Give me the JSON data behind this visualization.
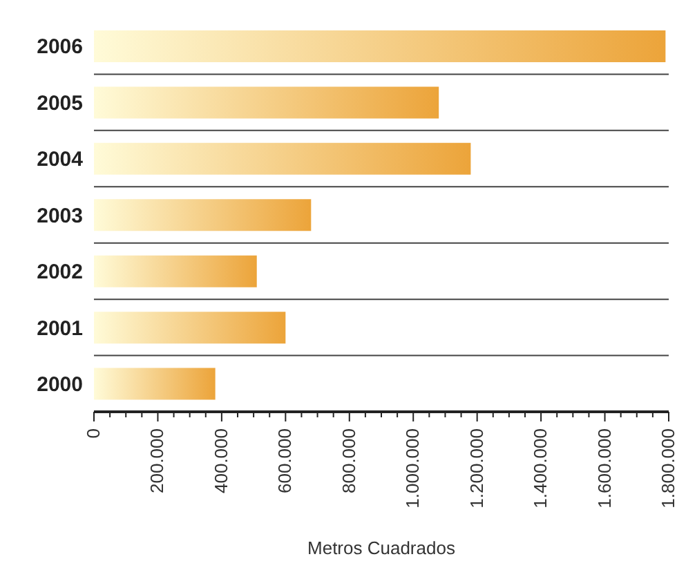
{
  "chart_data": {
    "type": "bar",
    "orientation": "horizontal",
    "xlabel": "Metros Cuadrados",
    "categories": [
      "2006",
      "2005",
      "2004",
      "2003",
      "2002",
      "2001",
      "2000"
    ],
    "values": [
      1790000,
      1080000,
      1180000,
      680000,
      510000,
      600000,
      380000
    ],
    "color": "#eca43a",
    "xlim": [
      0,
      1800000
    ],
    "xticks": [
      0,
      {
        "value": 50000,
        "label": null
      },
      {
        "value": 100000,
        "label": null
      },
      {
        "value": 150000,
        "label": null
      },
      {
        "value": 200000,
        "label": "200.000"
      },
      {
        "value": 250000,
        "label": null
      },
      {
        "value": 300000,
        "label": null
      },
      {
        "value": 350000,
        "label": null
      },
      {
        "value": 400000,
        "label": "400.000"
      },
      {
        "value": 450000,
        "label": null
      },
      {
        "value": 500000,
        "label": null
      },
      {
        "value": 550000,
        "label": null
      },
      {
        "value": 600000,
        "label": "600.000"
      },
      {
        "value": 650000,
        "label": null
      },
      {
        "value": 700000,
        "label": null
      },
      {
        "value": 750000,
        "label": null
      },
      {
        "value": 800000,
        "label": "800.000"
      },
      {
        "value": 850000,
        "label": null
      },
      {
        "value": 900000,
        "label": null
      },
      {
        "value": 950000,
        "label": null
      },
      {
        "value": 1000000,
        "label": "1.000.000"
      },
      {
        "value": 1050000,
        "label": null
      },
      {
        "value": 1100000,
        "label": null
      },
      {
        "value": 1150000,
        "label": null
      },
      {
        "value": 1200000,
        "label": "1.200.000"
      },
      {
        "value": 1250000,
        "label": null
      },
      {
        "value": 1300000,
        "label": null
      },
      {
        "value": 1350000,
        "label": null
      },
      {
        "value": 1400000,
        "label": "1.400.000"
      },
      {
        "value": 1450000,
        "label": null
      },
      {
        "value": 1500000,
        "label": null
      },
      {
        "value": 1550000,
        "label": null
      },
      {
        "value": 1600000,
        "label": "1.600.000"
      },
      {
        "value": 1650000,
        "label": null
      },
      {
        "value": 1700000,
        "label": null
      },
      {
        "value": 1750000,
        "label": null
      },
      {
        "value": 1800000,
        "label": "1.800.000"
      }
    ],
    "grid": "y"
  }
}
